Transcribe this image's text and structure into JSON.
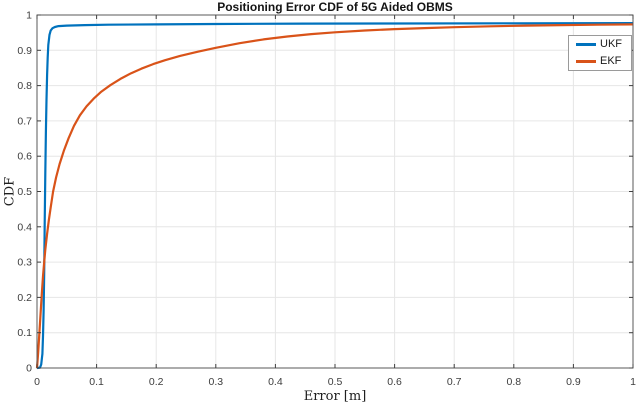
{
  "colors": {
    "background": "#ffffff",
    "grid": "#e6e6e6",
    "axis_box": "#5a5a5a",
    "tick_mark": "#404040",
    "tick_label": "#3d3d3d",
    "title": "#141414",
    "axis_label": "#1f1f1f",
    "legend_border": "#9a9a9a",
    "ukf_blue": "#0072BD",
    "ekf_orange": "#D95319"
  },
  "chart_data": {
    "type": "line",
    "title": "Positioning Error CDF of 5G Aided OBMS",
    "xlabel": "Error [m]",
    "ylabel": "CDF",
    "xlim": [
      0,
      1
    ],
    "ylim": [
      0,
      1
    ],
    "grid": true,
    "legend_position": "top-right",
    "x_ticks": [
      0,
      0.1,
      0.2,
      0.3,
      0.4,
      0.5,
      0.6,
      0.7,
      0.8,
      0.9,
      1
    ],
    "x_tick_labels": [
      "0",
      "0.1",
      "0.2",
      "0.3",
      "0.4",
      "0.5",
      "0.6",
      "0.7",
      "0.8",
      "0.9",
      "1"
    ],
    "y_ticks": [
      0,
      0.1,
      0.2,
      0.3,
      0.4,
      0.5,
      0.6,
      0.7,
      0.8,
      0.9,
      1
    ],
    "y_tick_labels": [
      "0",
      "0.1",
      "0.2",
      "0.3",
      "0.4",
      "0.5",
      "0.6",
      "0.7",
      "0.8",
      "0.9",
      "1"
    ],
    "series": [
      {
        "name": "UKF",
        "color": "#0072BD",
        "points": [
          [
            0,
            0
          ],
          [
            0.005,
            0.001
          ],
          [
            0.007,
            0.01
          ],
          [
            0.009,
            0.04
          ],
          [
            0.01,
            0.09
          ],
          [
            0.011,
            0.16
          ],
          [
            0.012,
            0.27
          ],
          [
            0.013,
            0.41
          ],
          [
            0.014,
            0.55
          ],
          [
            0.015,
            0.67
          ],
          [
            0.016,
            0.76
          ],
          [
            0.017,
            0.83
          ],
          [
            0.018,
            0.88
          ],
          [
            0.019,
            0.915
          ],
          [
            0.021,
            0.944
          ],
          [
            0.023,
            0.956
          ],
          [
            0.026,
            0.9625
          ],
          [
            0.03,
            0.966
          ],
          [
            0.036,
            0.9685
          ],
          [
            0.05,
            0.97
          ],
          [
            0.08,
            0.9715
          ],
          [
            0.12,
            0.9725
          ],
          [
            0.2,
            0.9735
          ],
          [
            0.3,
            0.9745
          ],
          [
            0.45,
            0.9755
          ],
          [
            0.6,
            0.976
          ],
          [
            0.8,
            0.9765
          ],
          [
            1.0,
            0.977
          ]
        ]
      },
      {
        "name": "EKF",
        "color": "#D95319",
        "points": [
          [
            0,
            0
          ],
          [
            0.002,
            0.045
          ],
          [
            0.004,
            0.1
          ],
          [
            0.006,
            0.155
          ],
          [
            0.008,
            0.21
          ],
          [
            0.01,
            0.26
          ],
          [
            0.012,
            0.3
          ],
          [
            0.014,
            0.335
          ],
          [
            0.017,
            0.38
          ],
          [
            0.02,
            0.42
          ],
          [
            0.023,
            0.455
          ],
          [
            0.027,
            0.5
          ],
          [
            0.032,
            0.54
          ],
          [
            0.038,
            0.578
          ],
          [
            0.045,
            0.615
          ],
          [
            0.053,
            0.651
          ],
          [
            0.062,
            0.686
          ],
          [
            0.072,
            0.716
          ],
          [
            0.083,
            0.741
          ],
          [
            0.095,
            0.763
          ],
          [
            0.108,
            0.783
          ],
          [
            0.123,
            0.801
          ],
          [
            0.14,
            0.819
          ],
          [
            0.158,
            0.835
          ],
          [
            0.175,
            0.848
          ],
          [
            0.195,
            0.861
          ],
          [
            0.215,
            0.872
          ],
          [
            0.24,
            0.884
          ],
          [
            0.27,
            0.896
          ],
          [
            0.3,
            0.907
          ],
          [
            0.34,
            0.92
          ],
          [
            0.38,
            0.931
          ],
          [
            0.42,
            0.939
          ],
          [
            0.46,
            0.946
          ],
          [
            0.5,
            0.951
          ],
          [
            0.55,
            0.956
          ],
          [
            0.6,
            0.96
          ],
          [
            0.65,
            0.963
          ],
          [
            0.7,
            0.9655
          ],
          [
            0.76,
            0.968
          ],
          [
            0.82,
            0.97
          ],
          [
            0.88,
            0.9715
          ],
          [
            0.94,
            0.9725
          ],
          [
            1.0,
            0.9735
          ]
        ]
      }
    ]
  }
}
